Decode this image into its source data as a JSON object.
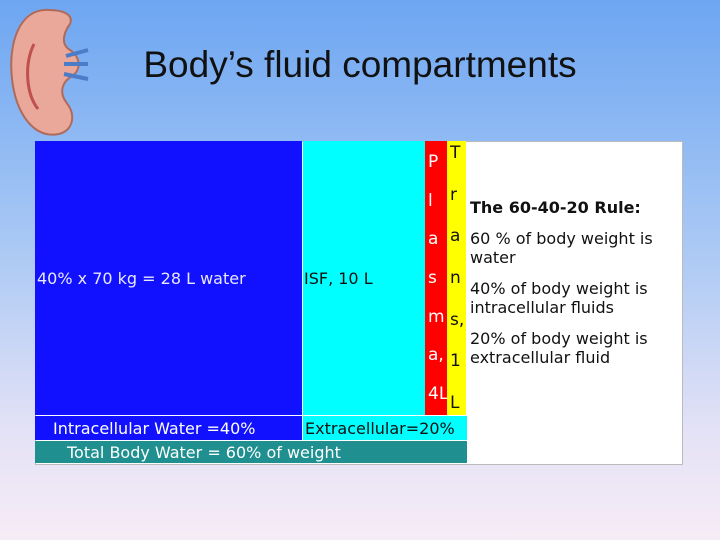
{
  "title": "Body’s fluid compartments",
  "intracellular": {
    "text": "40% x 70 kg = 28 L water",
    "label": "Intracellular Water =40%"
  },
  "interstitial": {
    "text": "ISF, 10 L",
    "label": "Extracellular=20%"
  },
  "plasma": {
    "letters": [
      "P",
      "l",
      "a",
      "s",
      "m",
      "a,",
      "4L"
    ]
  },
  "transcellular": {
    "letters": [
      "T",
      "r",
      "a",
      "n",
      "s,",
      "1",
      "L"
    ]
  },
  "total": "Total Body Water = 60% of weight",
  "rule": {
    "heading": "The 60-40-20 Rule:",
    "items": [
      "60 % of body weight is water",
      "40% of body weight is intracellular fluids",
      "20% of body weight is extracellular fluid"
    ]
  }
}
